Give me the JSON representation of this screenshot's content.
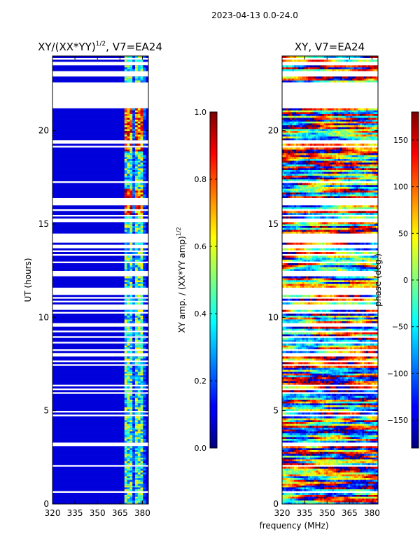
{
  "figure": {
    "suptitle": "2023-04-13 0.0-24.0",
    "xlabel": "frequency (MHz)"
  },
  "chart_data": [
    {
      "type": "heatmap",
      "title_main": "XY/(XX*YY)",
      "title_sup": "1/2",
      "title_tail": ", V7=EA24",
      "xlabel": "frequency (MHz)",
      "ylabel": "UT (hours)",
      "xlim": [
        320,
        384
      ],
      "ylim": [
        0,
        24
      ],
      "x_ticks": [
        320,
        335,
        350,
        365,
        380
      ],
      "y_ticks": [
        0,
        5,
        10,
        15,
        20
      ],
      "colorbar": {
        "label_main": "XY amp. / (XX*YY amp)",
        "label_sup": "1/2",
        "range": [
          0.0,
          1.0
        ],
        "ticks": [
          "0.0",
          "0.2",
          "0.4",
          "0.6",
          "0.8",
          "1.0"
        ],
        "tick_values": [
          0.0,
          0.2,
          0.4,
          0.6,
          0.8,
          1.0
        ]
      }
    },
    {
      "type": "heatmap",
      "title": "XY, V7=EA24",
      "xlabel": "frequency (MHz)",
      "ylabel": "",
      "xlim": [
        320,
        384
      ],
      "ylim": [
        0,
        24
      ],
      "x_ticks": [
        320,
        335,
        350,
        365,
        380
      ],
      "y_ticks": [
        0,
        5,
        10,
        15,
        20
      ],
      "colorbar": {
        "label": "phase (deg.)",
        "range": [
          -180,
          180
        ],
        "ticks": [
          "150",
          "100",
          "50",
          "0",
          "−50",
          "−100",
          "−150"
        ],
        "tick_values": [
          150,
          100,
          50,
          0,
          -50,
          -100,
          -150
        ]
      }
    }
  ]
}
